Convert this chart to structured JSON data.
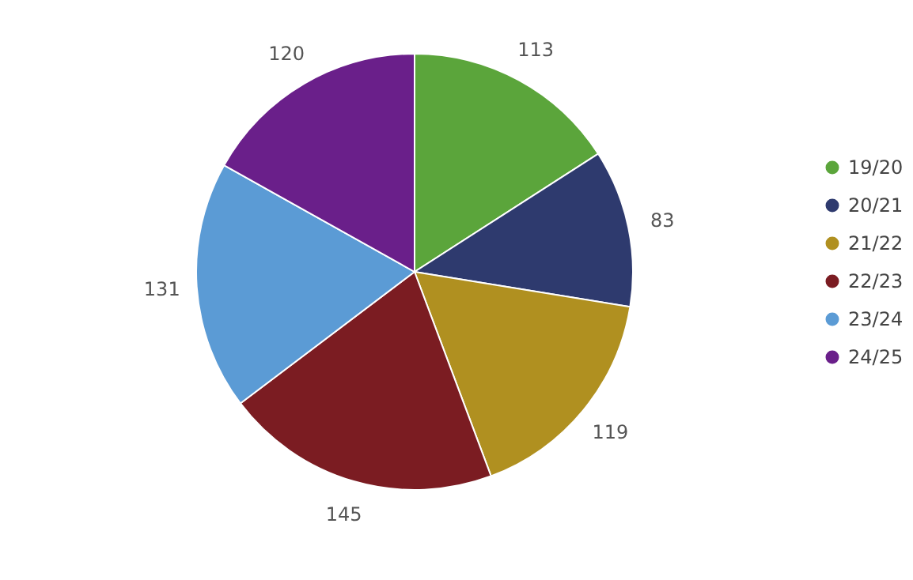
{
  "chart_data": {
    "type": "pie",
    "categories": [
      "19/20",
      "20/21",
      "21/22",
      "22/23",
      "23/24",
      "24/25"
    ],
    "values": [
      113,
      83,
      119,
      145,
      131,
      120
    ],
    "colors": [
      "#5ba53b",
      "#2e3a6e",
      "#b09020",
      "#7b1c22",
      "#5b9bd5",
      "#6a1f8a"
    ],
    "data_labels": true,
    "legend": "right"
  }
}
